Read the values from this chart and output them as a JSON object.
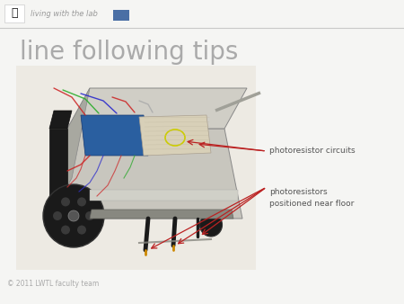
{
  "bg_color": "#f5f5f3",
  "header_line_color": "#c8c8c8",
  "header_text": "living with the lab",
  "header_text_color": "#999999",
  "header_square_color": "#4a6fa5",
  "title": "line following tips",
  "title_color": "#aaaaaa",
  "title_fontsize": 20,
  "footer_text": "© 2011 LWTL faculty team",
  "footer_color": "#aaaaaa",
  "footer_fontsize": 5.5,
  "label1_text": "photoresistor circuits",
  "label1_color": "#555555",
  "label1_fontsize": 6.5,
  "label2_text": "photoresistors\npositioned near floor",
  "label2_color": "#555555",
  "label2_fontsize": 6.5,
  "arrow_color": "#bb2222",
  "robot_bg": "#e8e4dc",
  "robot_frame_color": "#b8b8b8",
  "robot_chassis_color": "#c0c0c0",
  "robot_wheel_color": "#1a1a1a",
  "robot_board_color": "#2a5fa0",
  "robot_breadboard_color": "#e8e0d0",
  "robot_body_top": "#d4d0c8"
}
